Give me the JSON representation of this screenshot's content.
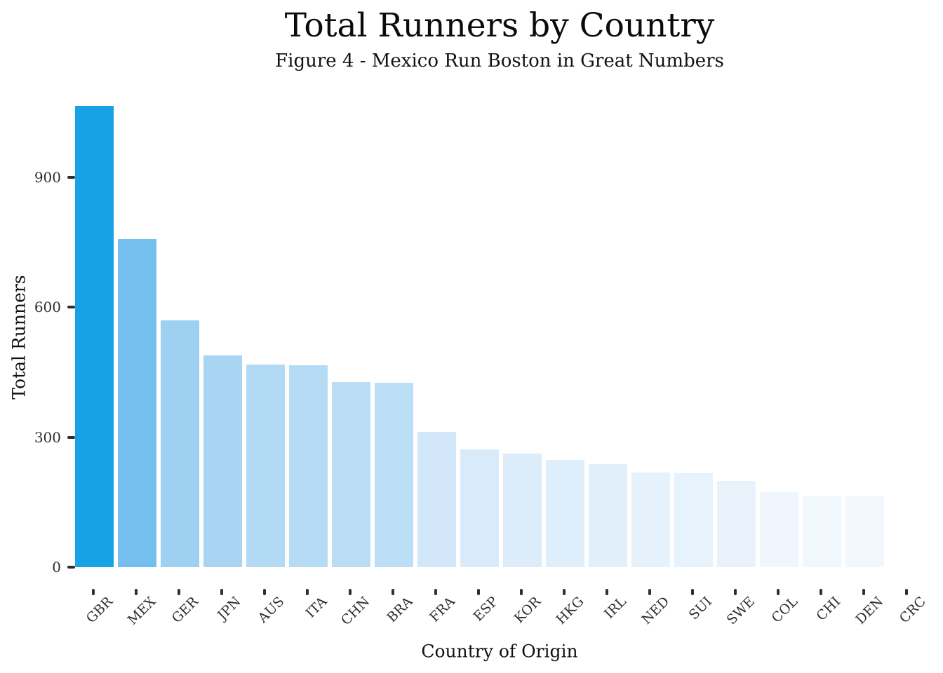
{
  "chart_data": {
    "type": "bar",
    "title": "Total Runners by Country",
    "subtitle": "Figure 4 - Mexico Run Boston in Great Numbers",
    "xlabel": "Country of Origin",
    "ylabel": "Total Runners",
    "categories": [
      "GBR",
      "MEX",
      "GER",
      "JPN",
      "AUS",
      "ITA",
      "CHN",
      "BRA",
      "FRA",
      "ESP",
      "KOR",
      "HKG",
      "IRL",
      "NED",
      "SUI",
      "SWE",
      "COL",
      "CHI",
      "DEN",
      "CRC"
    ],
    "values": [
      1065,
      757,
      570,
      489,
      468,
      466,
      428,
      426,
      312,
      272,
      262,
      248,
      238,
      219,
      217,
      199,
      173,
      164,
      163,
      1
    ],
    "bar_colors": [
      "#18A2E6",
      "#74BFED",
      "#9DD0F1",
      "#A9D5F3",
      "#B3DAF4",
      "#B6DBF5",
      "#BADDF5",
      "#BCDEF6",
      "#D2E7F9",
      "#D9EBFA",
      "#DCECFA",
      "#DFEEFB",
      "#E1EFFB",
      "#E5F1FB",
      "#E6F2FC",
      "#EAF3FC",
      "#EFF6FD",
      "#F0F7FD",
      "#F1F7FD",
      "#FBFDFF"
    ],
    "yticks": [
      0,
      300,
      600,
      900
    ],
    "ylim": [
      0,
      1083
    ],
    "grid": false,
    "legend": "none",
    "color_scale": "blue gradient, darker = more runners",
    "tick_color": "#2f2f2f",
    "text_color": "#111111",
    "background": "#ffffff"
  }
}
